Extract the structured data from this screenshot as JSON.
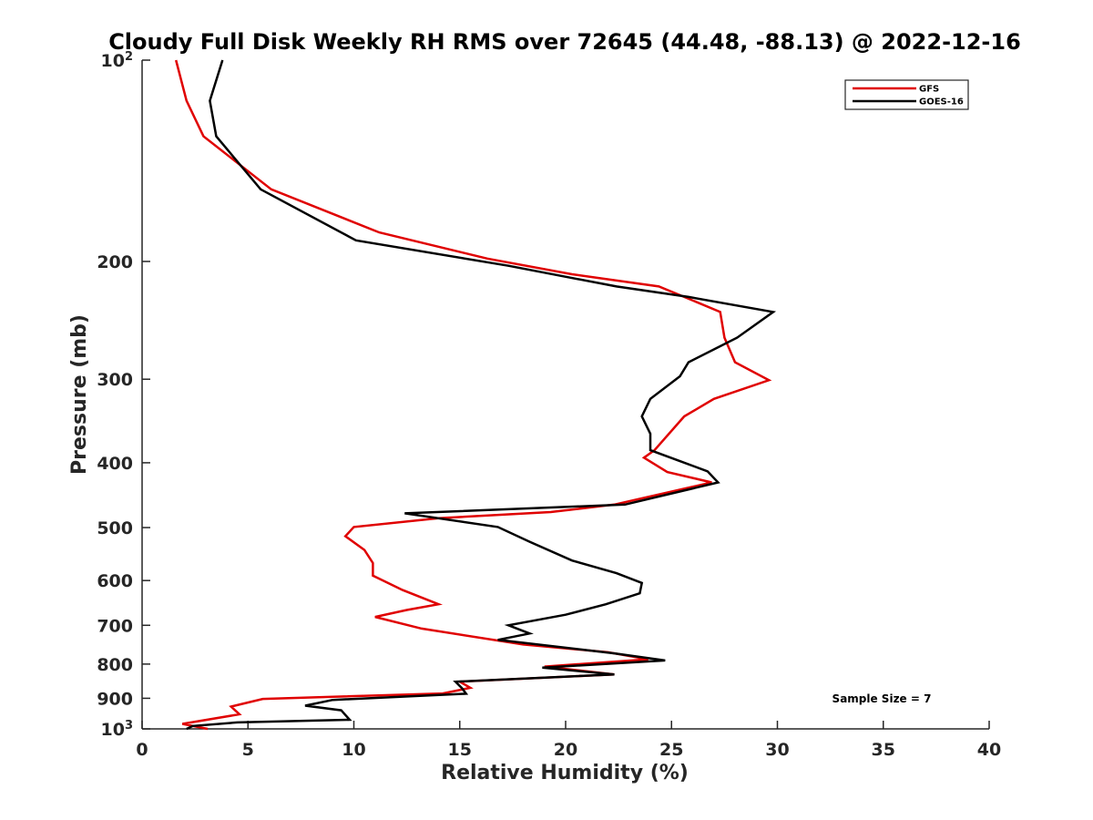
{
  "chart_data": {
    "type": "line",
    "title": "Cloudy Full Disk Weekly RH RMS over 72645 (44.48, -88.13) @ 2022-12-16",
    "xlabel": "Relative Humidity (%)",
    "ylabel": "Pressure (mb)",
    "xlim": [
      0,
      40
    ],
    "ylim": [
      100,
      1000
    ],
    "yscale": "log",
    "y_reversed": true,
    "grid": false,
    "legend_position": "top-right",
    "x_ticks": [
      "0",
      "5",
      "10",
      "15",
      "20",
      "25",
      "30",
      "35",
      "40"
    ],
    "y_ticks": [
      {
        "value": 100,
        "label": "10",
        "sup": "2"
      },
      {
        "value": 200,
        "label": "200",
        "sup": ""
      },
      {
        "value": 300,
        "label": "300",
        "sup": ""
      },
      {
        "value": 400,
        "label": "400",
        "sup": ""
      },
      {
        "value": 500,
        "label": "500",
        "sup": ""
      },
      {
        "value": 600,
        "label": "600",
        "sup": ""
      },
      {
        "value": 700,
        "label": "700",
        "sup": ""
      },
      {
        "value": 800,
        "label": "800",
        "sup": ""
      },
      {
        "value": 900,
        "label": "900",
        "sup": ""
      },
      {
        "value": 1000,
        "label": "10",
        "sup": "3"
      }
    ],
    "annotation": "Sample Size = 7",
    "series": [
      {
        "name": "GFS",
        "color": "#e00000",
        "points": [
          [
            1.6,
            100
          ],
          [
            2.1,
            115
          ],
          [
            2.9,
            130
          ],
          [
            6.1,
            156
          ],
          [
            11.2,
            181
          ],
          [
            16.3,
            198
          ],
          [
            20.3,
            209
          ],
          [
            24.4,
            218
          ],
          [
            25.6,
            226
          ],
          [
            27.3,
            238
          ],
          [
            27.5,
            260
          ],
          [
            28.0,
            283
          ],
          [
            29.6,
            301
          ],
          [
            27.0,
            321
          ],
          [
            25.6,
            341
          ],
          [
            24.2,
            383
          ],
          [
            23.7,
            393
          ],
          [
            24.8,
            413
          ],
          [
            26.9,
            428
          ],
          [
            22.3,
            462
          ],
          [
            19.3,
            474
          ],
          [
            14.0,
            484
          ],
          [
            10.0,
            499
          ],
          [
            9.6,
            515
          ],
          [
            10.5,
            540
          ],
          [
            10.9,
            565
          ],
          [
            10.9,
            590
          ],
          [
            12.3,
            620
          ],
          [
            14.0,
            651
          ],
          [
            12.5,
            664
          ],
          [
            11.0,
            680
          ],
          [
            13.2,
            708
          ],
          [
            18.0,
            748
          ],
          [
            22.0,
            768
          ],
          [
            23.9,
            787
          ],
          [
            19.0,
            807
          ],
          [
            22.3,
            829
          ],
          [
            15.0,
            850
          ],
          [
            15.5,
            868
          ],
          [
            14.2,
            885
          ],
          [
            5.7,
            902
          ],
          [
            4.2,
            926
          ],
          [
            4.6,
            951
          ],
          [
            1.9,
            983
          ],
          [
            3.1,
            1000
          ]
        ]
      },
      {
        "name": "GOES-16",
        "color": "#000000",
        "points": [
          [
            3.8,
            100
          ],
          [
            3.2,
            115
          ],
          [
            3.5,
            130
          ],
          [
            5.6,
            156
          ],
          [
            10.1,
            186
          ],
          [
            17.3,
            203
          ],
          [
            22.4,
            218
          ],
          [
            25.8,
            226
          ],
          [
            29.8,
            238
          ],
          [
            28.1,
            260
          ],
          [
            25.8,
            283
          ],
          [
            25.4,
            297
          ],
          [
            24.0,
            321
          ],
          [
            23.6,
            341
          ],
          [
            24.0,
            362
          ],
          [
            24.0,
            383
          ],
          [
            26.7,
            412
          ],
          [
            27.2,
            428
          ],
          [
            22.8,
            462
          ],
          [
            12.4,
            476
          ],
          [
            16.8,
            499
          ],
          [
            18.3,
            525
          ],
          [
            20.3,
            560
          ],
          [
            22.4,
            585
          ],
          [
            23.6,
            605
          ],
          [
            23.5,
            627
          ],
          [
            21.9,
            651
          ],
          [
            20.0,
            675
          ],
          [
            17.3,
            700
          ],
          [
            18.3,
            720
          ],
          [
            16.8,
            736
          ],
          [
            22.3,
            771
          ],
          [
            24.7,
            790
          ],
          [
            18.9,
            810
          ],
          [
            22.3,
            829
          ],
          [
            14.8,
            850
          ],
          [
            15.1,
            869
          ],
          [
            15.3,
            886
          ],
          [
            9.0,
            905
          ],
          [
            7.7,
            923
          ],
          [
            9.4,
            938
          ],
          [
            9.8,
            969
          ],
          [
            4.5,
            978
          ],
          [
            2.4,
            990
          ],
          [
            2.1,
            1000
          ]
        ]
      }
    ]
  }
}
